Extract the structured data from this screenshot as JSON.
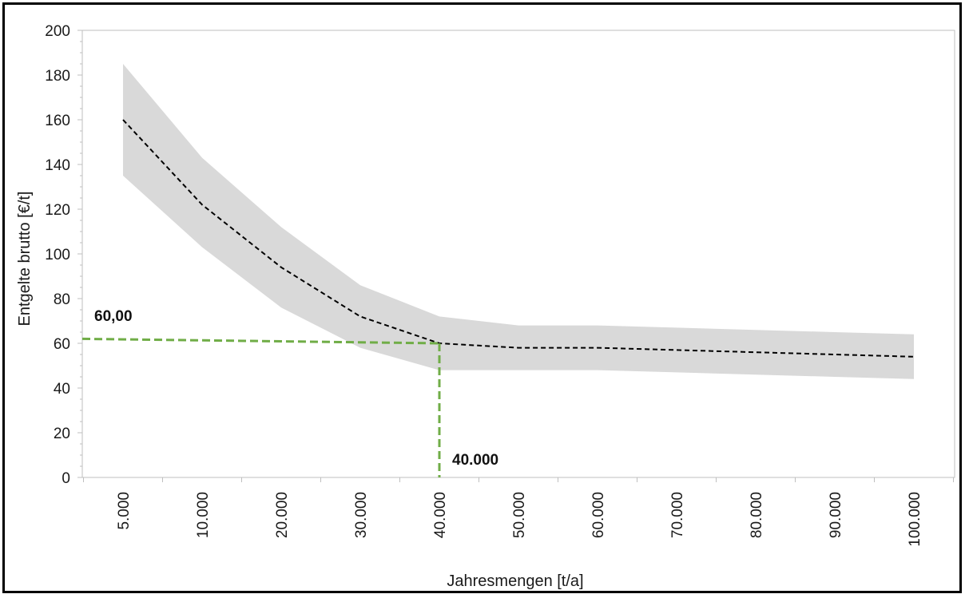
{
  "chart_data": {
    "type": "line",
    "title": "",
    "xlabel": "Jahresmengen [t/a]",
    "ylabel": "Entgelte brutto [€/t]",
    "categories": [
      "5.000",
      "10.000",
      "20.000",
      "30.000",
      "40.000",
      "50.000",
      "60.000",
      "70.000",
      "80.000",
      "90.000",
      "100.000"
    ],
    "ylim": [
      0,
      200
    ],
    "yticks": [
      "0",
      "20",
      "40",
      "60",
      "80",
      "100",
      "120",
      "140",
      "160",
      "180",
      "200"
    ],
    "series": [
      {
        "values": [
          160,
          122,
          94,
          72,
          60,
          58,
          58,
          57,
          56,
          55,
          54
        ]
      }
    ],
    "band": {
      "upper": [
        185,
        143,
        112,
        86,
        72,
        68,
        68,
        67,
        66,
        65,
        64
      ],
      "lower": [
        135,
        103,
        76,
        58,
        48,
        48,
        48,
        47,
        46,
        45,
        44
      ]
    },
    "reference": {
      "x_category": "40.000",
      "y_value": 60,
      "y_start_value": 62,
      "x_label": "40.000",
      "y_label": "60,00"
    },
    "colors": {
      "band": "#d9d9d9",
      "line": "#000000",
      "reference": "#70ad47",
      "axis": "#bfbfbf",
      "text": "#1a1a1a"
    },
    "grid": false,
    "legend": "none"
  }
}
